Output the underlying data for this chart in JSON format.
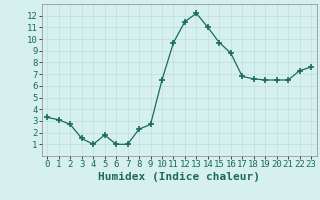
{
  "x": [
    0,
    1,
    2,
    3,
    4,
    5,
    6,
    7,
    8,
    9,
    10,
    11,
    12,
    13,
    14,
    15,
    16,
    17,
    18,
    19,
    20,
    21,
    22,
    23
  ],
  "y": [
    3.3,
    3.1,
    2.7,
    1.5,
    1.0,
    1.8,
    1.0,
    1.0,
    2.3,
    2.7,
    6.5,
    9.7,
    11.5,
    12.2,
    11.0,
    9.7,
    8.8,
    6.8,
    6.6,
    6.5,
    6.5,
    6.5,
    7.3,
    7.6
  ],
  "xlabel": "Humidex (Indice chaleur)",
  "ylim": [
    0,
    13
  ],
  "xlim": [
    -0.5,
    23.5
  ],
  "yticks": [
    1,
    2,
    3,
    4,
    5,
    6,
    7,
    8,
    9,
    10,
    11,
    12
  ],
  "xticks": [
    0,
    1,
    2,
    3,
    4,
    5,
    6,
    7,
    8,
    9,
    10,
    11,
    12,
    13,
    14,
    15,
    16,
    17,
    18,
    19,
    20,
    21,
    22,
    23
  ],
  "line_color": "#1a6b5a",
  "marker_color": "#1a6b5a",
  "bg_color": "#d6f0f0",
  "grid_color": "#c0dede",
  "xlabel_fontsize": 8,
  "tick_fontsize": 6.5
}
